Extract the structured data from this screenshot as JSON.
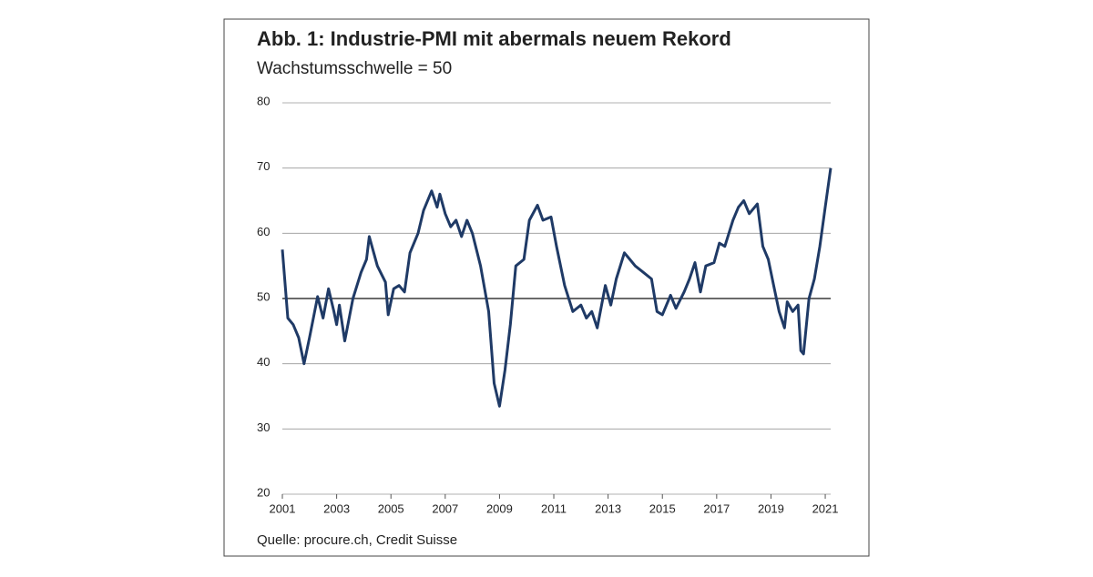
{
  "chart_data": {
    "type": "line",
    "title": "Abb. 1: Industrie-PMI mit abermals neuem Rekord",
    "subtitle": "Wachstumsschwelle = 50",
    "source": "Quelle: procure.ch, Credit Suisse",
    "x": [
      2001.0,
      2001.2,
      2001.4,
      2001.6,
      2001.8,
      2002.0,
      2002.3,
      2002.5,
      2002.7,
      2002.9,
      2003.0,
      2003.1,
      2003.3,
      2003.6,
      2003.9,
      2004.1,
      2004.2,
      2004.5,
      2004.8,
      2004.9,
      2005.1,
      2005.3,
      2005.5,
      2005.7,
      2006.0,
      2006.2,
      2006.5,
      2006.7,
      2006.8,
      2007.0,
      2007.2,
      2007.4,
      2007.6,
      2007.8,
      2008.0,
      2008.3,
      2008.6,
      2008.8,
      2009.0,
      2009.2,
      2009.4,
      2009.6,
      2009.9,
      2010.1,
      2010.4,
      2010.6,
      2010.9,
      2011.1,
      2011.4,
      2011.7,
      2012.0,
      2012.2,
      2012.4,
      2012.6,
      2012.9,
      2013.1,
      2013.3,
      2013.6,
      2013.8,
      2014.0,
      2014.3,
      2014.6,
      2014.8,
      2015.0,
      2015.3,
      2015.5,
      2015.8,
      2016.0,
      2016.2,
      2016.4,
      2016.6,
      2016.9,
      2017.1,
      2017.3,
      2017.6,
      2017.8,
      2018.0,
      2018.2,
      2018.5,
      2018.7,
      2018.9,
      2019.1,
      2019.3,
      2019.5,
      2019.6,
      2019.8,
      2020.0,
      2020.1,
      2020.2,
      2020.4,
      2020.6,
      2020.8,
      2021.0,
      2021.2
    ],
    "series": [
      {
        "name": "Industrie-PMI",
        "color": "#1f3a66",
        "values": [
          57.5,
          47,
          46,
          44,
          40,
          44,
          50.3,
          47,
          51.5,
          48,
          46,
          49,
          43.5,
          50,
          54,
          56,
          59.5,
          55,
          52.5,
          47.5,
          51.5,
          52,
          51,
          57,
          60,
          63.5,
          66.5,
          64,
          66,
          63,
          61,
          62,
          59.5,
          62,
          60,
          55,
          48,
          37,
          33.5,
          39,
          46,
          55,
          56,
          62,
          64.3,
          62,
          62.5,
          58,
          52,
          48,
          49,
          47,
          48,
          45.5,
          52,
          49,
          53,
          57,
          56,
          55,
          54,
          53,
          48,
          47.5,
          50.5,
          48.5,
          51,
          53,
          55.5,
          51,
          55,
          55.5,
          58.5,
          58,
          62,
          64,
          65,
          63,
          64.5,
          58,
          56,
          52,
          48,
          45.5,
          49.5,
          48,
          49,
          42,
          41.5,
          50,
          53,
          58,
          64,
          70
        ]
      }
    ],
    "xlim": [
      2001,
      2021.2
    ],
    "xticks": [
      2001,
      2003,
      2005,
      2007,
      2009,
      2011,
      2013,
      2015,
      2017,
      2019,
      2021
    ],
    "ylim": [
      20,
      80
    ],
    "yticks": [
      20,
      30,
      40,
      50,
      60,
      70,
      80
    ],
    "reference_line": 50,
    "grid": true
  }
}
